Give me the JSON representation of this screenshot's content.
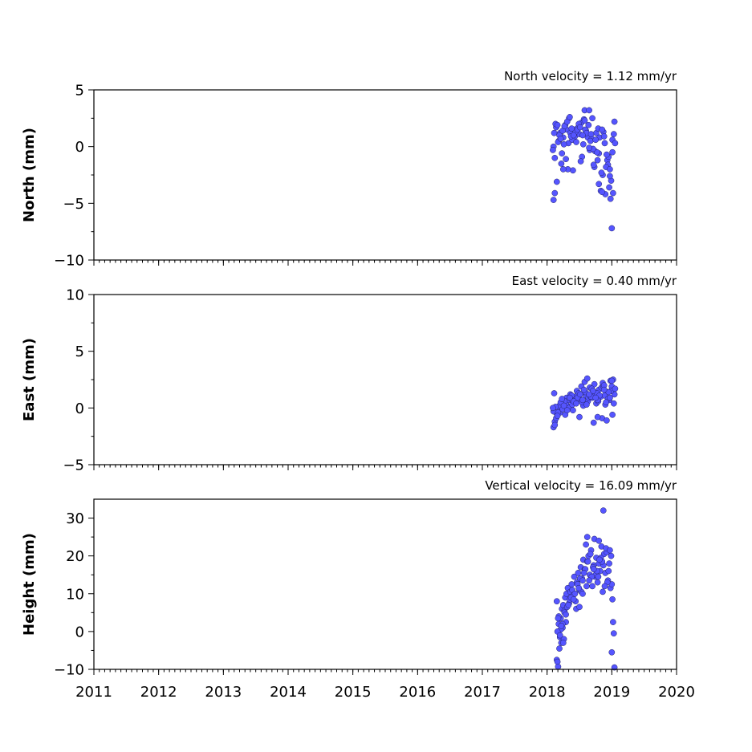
{
  "chart_data": [
    {
      "type": "scatter",
      "title": "North velocity = 1.12 mm/yr",
      "ylabel": "North (mm)",
      "ylim": [
        -10,
        5
      ],
      "yticks": [
        -10,
        -5,
        0,
        5
      ],
      "yticks_text": [
        "−10",
        "−5",
        "0",
        "5"
      ],
      "xlim": [
        2011,
        2020
      ],
      "series": [
        {
          "x": [
            2018.1,
            2018.12,
            2018.15,
            2018.18,
            2018.2,
            2018.22,
            2018.25,
            2018.28,
            2018.3,
            2018.33,
            2018.36,
            2018.4,
            2018.43,
            2018.46,
            2018.5,
            2018.53,
            2018.56,
            2018.6,
            2018.63,
            2018.66,
            2018.7,
            2018.73,
            2018.76,
            2018.8,
            2018.83,
            2018.86,
            2018.9,
            2018.93,
            2018.96,
            2019.0,
            2019.02,
            2019.04,
            2018.1,
            2018.14,
            2018.19,
            2018.24,
            2018.29,
            2018.34,
            2018.39,
            2018.44,
            2018.49,
            2018.54,
            2018.59,
            2018.64,
            2018.69,
            2018.74,
            2018.79,
            2018.84,
            2018.89,
            2018.94,
            2018.99,
            2019.03,
            2018.11,
            2018.17,
            2018.27,
            2018.37,
            2018.47,
            2018.57,
            2018.67,
            2018.77,
            2018.87,
            2018.97,
            2018.13,
            2018.21,
            2018.31,
            2018.41,
            2018.51,
            2018.61,
            2018.71,
            2018.81,
            2018.91,
            2019.01,
            2018.09,
            2018.16,
            2018.26,
            2018.38,
            2018.58,
            2018.68,
            2018.78,
            2018.88,
            2018.95,
            2019.05,
            2018.12,
            2018.23,
            2018.35,
            2018.45,
            2018.55,
            2018.65,
            2018.75,
            2018.85,
            2018.92,
            2018.98,
            2018.58,
            2018.65,
            2018.32,
            2018.8,
            2018.97,
            2019.01,
            2018.25,
            2018.52,
            2018.72,
            2018.85
          ],
          "y": [
            -4.7,
            -4.1,
            -3.1,
            0.5,
            1.2,
            -1.5,
            0.8,
            1.9,
            1.5,
            0.3,
            1.2,
            -2.1,
            0.9,
            1.6,
            1.1,
            2.1,
            0.2,
            1.4,
            0.8,
            -0.3,
            2.5,
            -1.8,
            1.2,
            -0.6,
            -3.9,
            -2.5,
            -4.2,
            -1.2,
            -3.6,
            -7.2,
            -4.1,
            2.2,
            0.0,
            1.7,
            1.0,
            1.4,
            -1.1,
            2.5,
            0.6,
            1.3,
            2.0,
            -0.9,
            1.5,
            1.9,
            0.7,
            -0.4,
            1.6,
            -2.3,
            0.3,
            -1.6,
            -3.0,
            1.1,
            1.2,
            0.4,
            1.8,
            0.9,
            1.5,
            2.4,
            0.5,
            -0.5,
            1.3,
            -2.6,
            2.0,
            0.7,
            2.2,
            1.0,
            1.7,
            1.2,
            -0.2,
            0.8,
            -1.8,
            0.6,
            -0.3,
            1.9,
            0.2,
            1.6,
            2.3,
            1.1,
            -1.2,
            0.9,
            -0.9,
            0.3,
            -1.0,
            -0.6,
            2.6,
            0.4,
            1.0,
            -0.1,
            0.6,
            1.5,
            -0.7,
            -4.6,
            3.2,
            3.2,
            -2.0,
            -3.3,
            -2.0,
            -0.5,
            -2.0,
            -1.3,
            -1.6,
            -4.0
          ]
        }
      ]
    },
    {
      "type": "scatter",
      "title": "East velocity = 0.40 mm/yr",
      "ylabel": "East (mm)",
      "ylim": [
        -5,
        10
      ],
      "yticks": [
        -5,
        0,
        5,
        10
      ],
      "yticks_text": [
        "−5",
        "0",
        "5",
        "10"
      ],
      "xlim": [
        2011,
        2020
      ],
      "series": [
        {
          "x": [
            2018.1,
            2018.12,
            2018.15,
            2018.18,
            2018.2,
            2018.22,
            2018.25,
            2018.28,
            2018.3,
            2018.33,
            2018.36,
            2018.4,
            2018.43,
            2018.46,
            2018.5,
            2018.53,
            2018.56,
            2018.6,
            2018.63,
            2018.66,
            2018.7,
            2018.73,
            2018.76,
            2018.8,
            2018.83,
            2018.86,
            2018.9,
            2018.93,
            2018.96,
            2019.0,
            2019.02,
            2019.04,
            2018.1,
            2018.14,
            2018.19,
            2018.24,
            2018.29,
            2018.34,
            2018.39,
            2018.44,
            2018.49,
            2018.54,
            2018.59,
            2018.64,
            2018.69,
            2018.74,
            2018.79,
            2018.84,
            2018.89,
            2018.94,
            2018.99,
            2019.03,
            2018.11,
            2018.17,
            2018.27,
            2018.37,
            2018.47,
            2018.57,
            2018.67,
            2018.77,
            2018.87,
            2018.97,
            2018.13,
            2018.21,
            2018.31,
            2018.41,
            2018.51,
            2018.61,
            2018.71,
            2018.81,
            2018.91,
            2019.01,
            2018.09,
            2018.16,
            2018.26,
            2018.38,
            2018.58,
            2018.68,
            2018.78,
            2018.88,
            2018.95,
            2019.05,
            2018.12,
            2018.23,
            2018.35,
            2018.45,
            2018.55,
            2018.65,
            2018.75,
            2018.85,
            2018.92,
            2018.98,
            2018.62,
            2018.72,
            2018.78,
            2019.0,
            2018.5,
            2018.88
          ],
          "y": [
            -1.7,
            -1.2,
            -0.5,
            0.0,
            -0.4,
            0.3,
            0.5,
            -0.6,
            0.9,
            0.1,
            1.2,
            -0.2,
            0.6,
            1.5,
            0.8,
            1.9,
            0.2,
            1.1,
            0.6,
            1.8,
            0.9,
            2.1,
            0.4,
            1.6,
            1.0,
            2.2,
            0.3,
            1.4,
            0.7,
            1.9,
            2.5,
            1.2,
            -0.3,
            -0.9,
            0.2,
            -0.1,
            0.4,
            0.7,
            0.3,
            1.0,
            1.3,
            0.5,
            1.4,
            0.9,
            1.7,
            1.2,
            0.6,
            1.8,
            1.1,
            0.8,
            1.5,
            0.4,
            1.3,
            -0.4,
            0.6,
            0.8,
            0.9,
            1.6,
            1.0,
            1.3,
            1.9,
            0.9,
            0.1,
            0.5,
            -0.2,
            0.6,
            1.2,
            0.3,
            1.5,
            1.1,
            0.5,
            -0.6,
            0.0,
            -0.7,
            0.2,
            1.1,
            2.3,
            1.0,
            0.7,
            2.0,
            1.4,
            1.7,
            -1.5,
            0.8,
            0.9,
            0.4,
            0.7,
            1.2,
            0.9,
            -0.9,
            -1.1,
            2.4,
            2.6,
            -1.3,
            -0.8,
            2.4,
            -0.8,
            1.6
          ]
        }
      ]
    },
    {
      "type": "scatter",
      "title": "Vertical velocity = 16.09 mm/yr",
      "ylabel": "Height (mm)",
      "ylim": [
        -10,
        35
      ],
      "yticks": [
        -10,
        0,
        10,
        20,
        30
      ],
      "yticks_text": [
        "−10",
        "0",
        "10",
        "20",
        "30"
      ],
      "xlim": [
        2011,
        2020
      ],
      "xticks": [
        2011,
        2012,
        2013,
        2014,
        2015,
        2016,
        2017,
        2018,
        2019,
        2020
      ],
      "xticks_text": [
        "2011",
        "2012",
        "2013",
        "2014",
        "2015",
        "2016",
        "2017",
        "2018",
        "2019",
        "2020"
      ],
      "series": [
        {
          "x": [
            2018.15,
            2018.16,
            2018.17,
            2018.18,
            2018.19,
            2018.2,
            2018.21,
            2018.22,
            2018.23,
            2018.24,
            2018.25,
            2018.26,
            2018.27,
            2018.28,
            2018.29,
            2018.3,
            2018.32,
            2018.34,
            2018.36,
            2018.38,
            2018.4,
            2018.42,
            2018.44,
            2018.46,
            2018.48,
            2018.5,
            2018.52,
            2018.54,
            2018.56,
            2018.58,
            2018.6,
            2018.62,
            2018.64,
            2018.66,
            2018.68,
            2018.7,
            2018.72,
            2018.74,
            2018.76,
            2018.78,
            2018.8,
            2018.82,
            2018.84,
            2018.86,
            2018.88,
            2018.9,
            2018.92,
            2018.94,
            2018.96,
            2018.98,
            2019.0,
            2019.01,
            2019.02,
            2019.03,
            2019.04,
            2018.15,
            2018.18,
            2018.21,
            2018.24,
            2018.27,
            2018.31,
            2018.35,
            2018.39,
            2018.43,
            2018.47,
            2018.51,
            2018.55,
            2018.59,
            2018.63,
            2018.67,
            2018.71,
            2018.75,
            2018.79,
            2018.83,
            2018.87,
            2018.91,
            2018.95,
            2018.99,
            2018.17,
            2018.22,
            2018.29,
            2018.37,
            2018.45,
            2018.53,
            2018.61,
            2018.69,
            2018.77,
            2018.85,
            2018.93,
            2019.0,
            2018.16,
            2018.2,
            2018.25,
            2018.33,
            2018.41,
            2018.49,
            2018.57,
            2018.65,
            2018.73,
            2018.81,
            2018.89,
            2018.97,
            2018.87,
            2018.8,
            2018.55,
            2018.5,
            2018.72,
            2018.62
          ],
          "y": [
            -7.5,
            -8.0,
            -9.3,
            2.0,
            -4.5,
            -1.5,
            3.5,
            -3.0,
            6.0,
            1.0,
            7.0,
            -2.0,
            5.5,
            9.0,
            2.5,
            10.0,
            11.5,
            7.5,
            10.5,
            12.5,
            9.5,
            14.5,
            8.0,
            13.0,
            15.5,
            11.0,
            17.0,
            14.0,
            19.0,
            16.5,
            23.0,
            18.5,
            20.0,
            15.0,
            21.5,
            12.0,
            17.5,
            14.5,
            19.5,
            13.0,
            18.0,
            16.0,
            22.5,
            10.5,
            20.5,
            15.5,
            21.0,
            13.5,
            18.0,
            11.5,
            12.5,
            8.5,
            2.5,
            -0.5,
            -9.5,
            8.0,
            4.0,
            0.5,
            2.0,
            5.0,
            6.5,
            8.5,
            11.0,
            10.0,
            12.5,
            14.0,
            13.5,
            16.5,
            18.5,
            20.5,
            17.0,
            15.0,
            14.5,
            19.5,
            17.5,
            22.0,
            16.0,
            20.0,
            3.5,
            1.5,
            4.5,
            9.0,
            6.0,
            10.5,
            12.0,
            14.5,
            16.0,
            18.5,
            13.0,
            -5.5,
            0.0,
            -1.0,
            -3.0,
            7.0,
            8.5,
            11.5,
            15.5,
            13.5,
            24.5,
            19.0,
            12.0,
            21.5,
            32.0,
            24.0,
            10.0,
            6.5,
            16.5,
            25.0
          ]
        }
      ]
    }
  ]
}
